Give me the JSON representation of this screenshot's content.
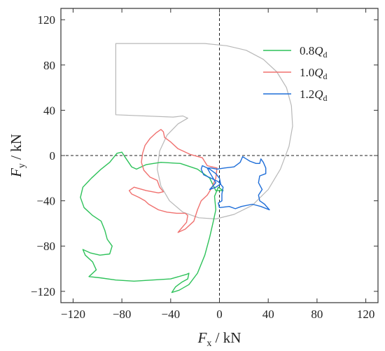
{
  "chart_data": {
    "type": "line",
    "title": "",
    "xlabel": {
      "main": "F",
      "sub": "x",
      "unit": " / kN"
    },
    "ylabel": {
      "main": "F",
      "sub": "y",
      "unit": " / kN"
    },
    "xlim": [
      -130,
      130
    ],
    "ylim": [
      -130,
      130
    ],
    "xticks": [
      -120,
      -80,
      -40,
      0,
      40,
      80,
      120
    ],
    "yticks": [
      -120,
      -80,
      -40,
      0,
      40,
      80,
      120
    ],
    "grid": false,
    "zero_lines": "dashed",
    "legend_position": "top-right",
    "outline": {
      "color": "#b8b8b8",
      "points": [
        [
          -30,
          35
        ],
        [
          -38,
          34
        ],
        [
          -85,
          36
        ],
        [
          -85,
          99
        ],
        [
          -12,
          99
        ],
        [
          6,
          97
        ],
        [
          22,
          93
        ],
        [
          36,
          85
        ],
        [
          47,
          74
        ],
        [
          55,
          60
        ],
        [
          59,
          44
        ],
        [
          60,
          26
        ],
        [
          57,
          8
        ],
        [
          50,
          -12
        ],
        [
          40,
          -30
        ],
        [
          27,
          -44
        ],
        [
          12,
          -52
        ],
        [
          -3,
          -56
        ],
        [
          -17,
          -55
        ],
        [
          -30,
          -50
        ],
        [
          -41,
          -40
        ],
        [
          -48,
          -27
        ],
        [
          -51,
          -12
        ],
        [
          -49,
          4
        ],
        [
          -43,
          18
        ],
        [
          -34,
          28
        ],
        [
          -26,
          33
        ],
        [
          -30,
          35
        ]
      ]
    },
    "series": [
      {
        "name": "0.8Q",
        "name_main": "0.8",
        "name_q": "Q",
        "name_sub": "d",
        "color": "#2ec25a",
        "points": [
          [
            -3,
            -31
          ],
          [
            -8,
            -20
          ],
          [
            -18,
            -12
          ],
          [
            -32,
            -7
          ],
          [
            -48,
            -6
          ],
          [
            -60,
            -8
          ],
          [
            -68,
            -12
          ],
          [
            -72,
            -10
          ],
          [
            -77,
            -2
          ],
          [
            -80,
            3
          ],
          [
            -84,
            2
          ],
          [
            -90,
            -6
          ],
          [
            -97,
            -12
          ],
          [
            -105,
            -20
          ],
          [
            -112,
            -28
          ],
          [
            -114,
            -37
          ],
          [
            -111,
            -46
          ],
          [
            -104,
            -53
          ],
          [
            -97,
            -58
          ],
          [
            -94,
            -66
          ],
          [
            -92,
            -74
          ],
          [
            -88,
            -80
          ],
          [
            -90,
            -87
          ],
          [
            -98,
            -88
          ],
          [
            -106,
            -86
          ],
          [
            -112,
            -83
          ],
          [
            -110,
            -88
          ],
          [
            -104,
            -94
          ],
          [
            -101,
            -101
          ],
          [
            -107,
            -107
          ],
          [
            -98,
            -108
          ],
          [
            -85,
            -110
          ],
          [
            -70,
            -111
          ],
          [
            -55,
            -110
          ],
          [
            -40,
            -109
          ],
          [
            -27,
            -105
          ],
          [
            -25,
            -104
          ],
          [
            -26,
            -109
          ],
          [
            -31,
            -112
          ],
          [
            -36,
            -116
          ],
          [
            -39,
            -121
          ],
          [
            -33,
            -119
          ],
          [
            -25,
            -114
          ],
          [
            -18,
            -104
          ],
          [
            -12,
            -88
          ],
          [
            -8,
            -72
          ],
          [
            -5,
            -58
          ],
          [
            -3,
            -48
          ],
          [
            -4,
            -36
          ],
          [
            -1,
            -28
          ],
          [
            3,
            -31
          ],
          [
            -3,
            -31
          ]
        ]
      },
      {
        "name": "1.0Q",
        "name_main": "1.0",
        "name_q": "Q",
        "name_sub": "d",
        "color": "#f0716f",
        "points": [
          [
            -2,
            -11
          ],
          [
            -6,
            -10
          ],
          [
            -10,
            -9
          ],
          [
            -14,
            -2
          ],
          [
            -24,
            1
          ],
          [
            -34,
            6
          ],
          [
            -40,
            12
          ],
          [
            -45,
            16
          ],
          [
            -46,
            21
          ],
          [
            -48,
            23
          ],
          [
            -52,
            20
          ],
          [
            -57,
            15
          ],
          [
            -61,
            9
          ],
          [
            -63,
            2
          ],
          [
            -64,
            -6
          ],
          [
            -62,
            -13
          ],
          [
            -57,
            -19
          ],
          [
            -51,
            -22
          ],
          [
            -49,
            -28
          ],
          [
            -46,
            -32
          ],
          [
            -50,
            -33
          ],
          [
            -60,
            -31
          ],
          [
            -70,
            -28
          ],
          [
            -74,
            -31
          ],
          [
            -72,
            -34
          ],
          [
            -66,
            -37
          ],
          [
            -61,
            -40
          ],
          [
            -58,
            -43
          ],
          [
            -50,
            -48
          ],
          [
            -43,
            -50
          ],
          [
            -35,
            -51
          ],
          [
            -28,
            -51
          ],
          [
            -26,
            -53
          ],
          [
            -27,
            -59
          ],
          [
            -31,
            -64
          ],
          [
            -34,
            -68
          ],
          [
            -28,
            -65
          ],
          [
            -21,
            -58
          ],
          [
            -18,
            -48
          ],
          [
            -15,
            -40
          ],
          [
            -10,
            -35
          ],
          [
            -6,
            -28
          ],
          [
            -3,
            -20
          ],
          [
            -2,
            -11
          ]
        ]
      },
      {
        "name": "1.2Q",
        "name_main": "1.2",
        "name_q": "Q",
        "name_sub": "d",
        "color": "#1f6ed8",
        "points": [
          [
            -8,
            -30
          ],
          [
            -3,
            -24
          ],
          [
            -8,
            -15
          ],
          [
            -10,
            -11
          ],
          [
            -7,
            -11
          ],
          [
            -2,
            -12
          ],
          [
            4,
            -11
          ],
          [
            12,
            -10
          ],
          [
            17,
            -6
          ],
          [
            19,
            -1
          ],
          [
            22,
            -3
          ],
          [
            25,
            -5
          ],
          [
            30,
            -7
          ],
          [
            33,
            -7
          ],
          [
            34,
            -3
          ],
          [
            36,
            -6
          ],
          [
            38,
            -11
          ],
          [
            38,
            -16
          ],
          [
            33,
            -18
          ],
          [
            32,
            -24
          ],
          [
            35,
            -30
          ],
          [
            32,
            -35
          ],
          [
            33,
            -40
          ],
          [
            37,
            -43
          ],
          [
            41,
            -48
          ],
          [
            34,
            -45
          ],
          [
            27,
            -43
          ],
          [
            18,
            -45
          ],
          [
            13,
            -47
          ],
          [
            8,
            -45
          ],
          [
            0,
            -46
          ],
          [
            -1,
            -42
          ],
          [
            2,
            -40
          ],
          [
            2,
            -34
          ],
          [
            3,
            -28
          ],
          [
            -1,
            -23
          ],
          [
            -7,
            -20
          ],
          [
            -13,
            -17
          ],
          [
            -15,
            -12
          ],
          [
            -14,
            -9
          ],
          [
            -8,
            -12
          ],
          [
            -3,
            -16
          ],
          [
            0,
            -20
          ],
          [
            1,
            -25
          ],
          [
            -3,
            -28
          ],
          [
            -8,
            -30
          ]
        ]
      }
    ]
  }
}
